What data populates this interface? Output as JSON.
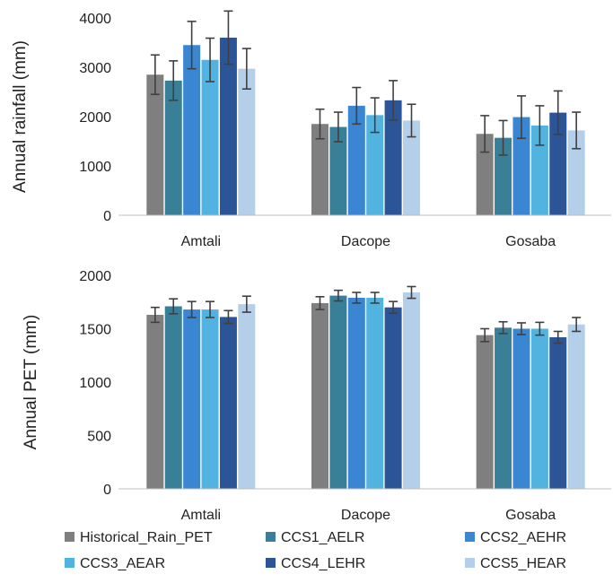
{
  "chart_data": [
    {
      "type": "bar",
      "title": "",
      "xlabel": "",
      "ylabel": "Annual rainfall (mm)",
      "ylim": [
        0,
        4000
      ],
      "yticks": [
        0,
        1000,
        2000,
        3000,
        4000
      ],
      "categories": [
        "Amtali",
        "Dacope",
        "Gosaba"
      ],
      "error_bars": true,
      "series": [
        {
          "name": "Historical_Rain_PET",
          "color": "#7f7f7f",
          "values": [
            2850,
            1850,
            1650
          ],
          "errors": [
            400,
            300,
            370
          ]
        },
        {
          "name": "CCS1_AELR",
          "color": "#3a7f98",
          "values": [
            2730,
            1790,
            1570
          ],
          "errors": [
            400,
            300,
            350
          ]
        },
        {
          "name": "CCS2_AEHR",
          "color": "#3a86d2",
          "values": [
            3450,
            2220,
            1990
          ],
          "errors": [
            480,
            370,
            430
          ]
        },
        {
          "name": "CCS3_AEAR",
          "color": "#52b2e0",
          "values": [
            3150,
            2030,
            1820
          ],
          "errors": [
            440,
            350,
            400
          ]
        },
        {
          "name": "CCS4_LEHR",
          "color": "#2c5597",
          "values": [
            3600,
            2330,
            2080
          ],
          "errors": [
            540,
            400,
            440
          ]
        },
        {
          "name": "CCS5_HEAR",
          "color": "#b3cfea",
          "values": [
            2970,
            1920,
            1720
          ],
          "errors": [
            410,
            330,
            370
          ]
        }
      ]
    },
    {
      "type": "bar",
      "title": "",
      "xlabel": "",
      "ylabel": "Annual PET (mm)",
      "ylim": [
        0,
        2000
      ],
      "yticks": [
        0,
        500,
        1000,
        1500,
        2000
      ],
      "categories": [
        "Amtali",
        "Dacope",
        "Gosaba"
      ],
      "error_bars": true,
      "series": [
        {
          "name": "Historical_Rain_PET",
          "color": "#7f7f7f",
          "values": [
            1630,
            1740,
            1440
          ],
          "errors": [
            70,
            60,
            60
          ]
        },
        {
          "name": "CCS1_AELR",
          "color": "#3a7f98",
          "values": [
            1710,
            1810,
            1510
          ],
          "errors": [
            70,
            50,
            55
          ]
        },
        {
          "name": "CCS2_AEHR",
          "color": "#3a86d2",
          "values": [
            1680,
            1790,
            1500
          ],
          "errors": [
            75,
            50,
            55
          ]
        },
        {
          "name": "CCS3_AEAR",
          "color": "#52b2e0",
          "values": [
            1680,
            1790,
            1500
          ],
          "errors": [
            75,
            50,
            60
          ]
        },
        {
          "name": "CCS4_LEHR",
          "color": "#2c5597",
          "values": [
            1610,
            1700,
            1420
          ],
          "errors": [
            60,
            55,
            55
          ]
        },
        {
          "name": "CCS5_HEAR",
          "color": "#b3cfea",
          "values": [
            1730,
            1840,
            1540
          ],
          "errors": [
            75,
            55,
            65
          ]
        }
      ]
    }
  ],
  "legend": {
    "placement": "bottom",
    "items": [
      {
        "label": "Historical_Rain_PET",
        "color": "#7f7f7f"
      },
      {
        "label": "CCS1_AELR",
        "color": "#3a7f98"
      },
      {
        "label": "CCS2_AEHR",
        "color": "#3a86d2"
      },
      {
        "label": "CCS3_AEAR",
        "color": "#52b2e0"
      },
      {
        "label": "CCS4_LEHR",
        "color": "#2c5597"
      },
      {
        "label": "CCS5_HEAR",
        "color": "#b3cfea"
      }
    ]
  }
}
